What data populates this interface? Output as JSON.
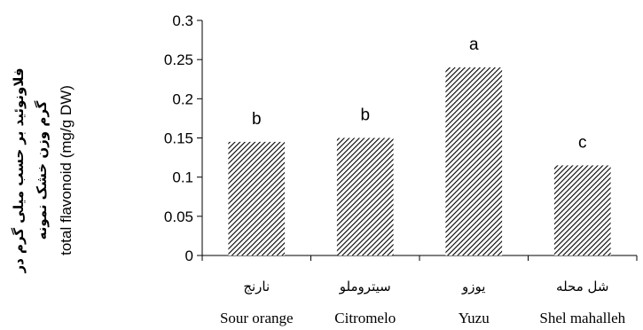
{
  "chart_data": {
    "type": "bar",
    "categories": [
      {
        "fa": "نارنج",
        "en": "Sour orange"
      },
      {
        "fa": "سیتروملو",
        "en": "Citromelo"
      },
      {
        "fa": "یوزو",
        "en": "Yuzu"
      },
      {
        "fa": "شل محله",
        "en": "Shel mahalleh"
      }
    ],
    "values": [
      0.145,
      0.15,
      0.24,
      0.115
    ],
    "significance_letters": [
      "b",
      "b",
      "a",
      "c"
    ],
    "ylabel_fa_line1": "فلاونوئید بر حسب میلی گرم در",
    "ylabel_fa_line2": "گرم وزن خشک نمونه",
    "ylabel_en": "total flavonoid (mg/g DW)",
    "ylim": [
      0,
      0.3
    ],
    "yticks": [
      "0",
      "0.05",
      "0.1",
      "0.15",
      "0.2",
      "0.25",
      "0.3"
    ],
    "grid": false,
    "legend": "none",
    "bar_pattern": "diagonal-hatch",
    "bar_color": "#000000"
  }
}
